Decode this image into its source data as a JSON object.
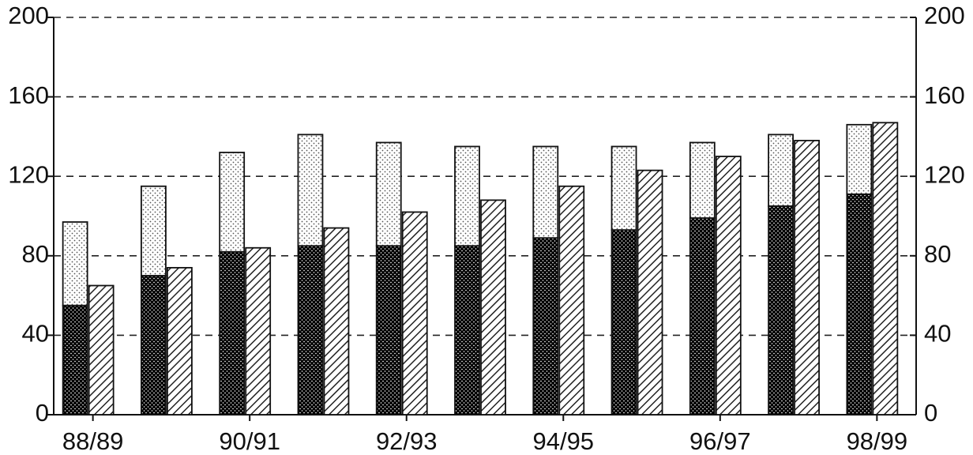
{
  "chart_data": {
    "type": "bar",
    "categories": [
      "88/89",
      null,
      "90/91",
      null,
      "92/93",
      null,
      "94/95",
      null,
      "96/97",
      null,
      "98/99"
    ],
    "series": [
      {
        "color": "#2a2a2a",
        "pattern": "crosshatch",
        "stack": 0,
        "values": [
          55,
          70,
          82,
          85,
          85,
          85,
          89,
          93,
          99,
          105,
          111
        ]
      },
      {
        "color": "#555555",
        "pattern": "dots",
        "stack": 0,
        "values": [
          42,
          45,
          50,
          56,
          52,
          50,
          46,
          42,
          38,
          36,
          35
        ]
      },
      {
        "color": "#222222",
        "pattern": "hatch",
        "stack": 1,
        "values": [
          65,
          74,
          84,
          94,
          102,
          108,
          115,
          123,
          130,
          138,
          147
        ]
      }
    ],
    "ylim": [
      0,
      200
    ],
    "yticks": [
      0,
      40,
      80,
      120,
      160,
      200
    ],
    "y2lim": [
      0,
      200
    ],
    "y2ticks": [
      0,
      40,
      80,
      120,
      160,
      200
    ],
    "grid": true
  }
}
